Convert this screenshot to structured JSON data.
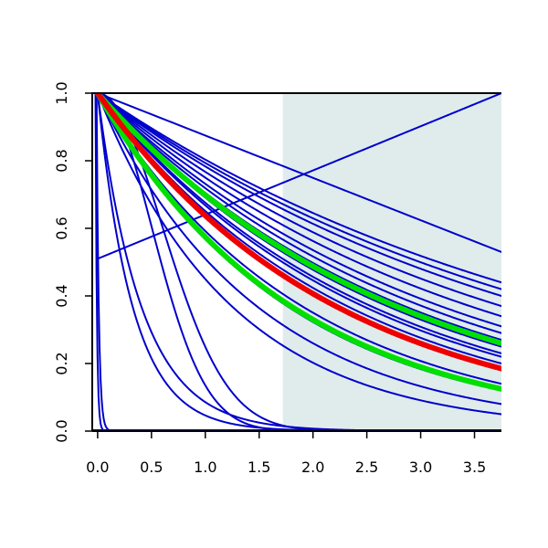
{
  "chart_data": {
    "type": "line",
    "title": "",
    "xlabel": "",
    "ylabel": "",
    "xlim": [
      -0.05,
      3.75
    ],
    "ylim": [
      0,
      1
    ],
    "grid": false,
    "x_ticks": [
      "0.0",
      "0.5",
      "1.0",
      "1.5",
      "2.0",
      "2.5",
      "3.0",
      "3.5"
    ],
    "y_ticks": [
      "0.0",
      "0.2",
      "0.4",
      "0.6",
      "0.8",
      "1.0"
    ],
    "shaded_region": {
      "x_start": 1.72,
      "x_end": 3.75,
      "color": "#e0ecec"
    },
    "colors": {
      "blue": "#0000cc",
      "green": "#00e000",
      "red": "#ee0000"
    },
    "series": [
      {
        "kind": "linear",
        "y0": 0.51,
        "y_end": 1.0,
        "color": "blue",
        "width": 2
      },
      {
        "kind": "linear",
        "y0": 1.0,
        "y_end": 0.53,
        "color": "blue",
        "width": 2
      },
      {
        "kind": "exp",
        "y_end": 0.44,
        "color": "blue",
        "width": 2
      },
      {
        "kind": "exp",
        "y_end": 0.42,
        "color": "blue",
        "width": 2
      },
      {
        "kind": "exp",
        "y_end": 0.4,
        "color": "blue",
        "width": 2
      },
      {
        "kind": "exp",
        "y_end": 0.37,
        "color": "blue",
        "width": 2
      },
      {
        "kind": "exp",
        "y_end": 0.34,
        "color": "blue",
        "width": 2
      },
      {
        "kind": "exp",
        "y_end": 0.31,
        "color": "blue",
        "width": 2
      },
      {
        "kind": "exp",
        "y_end": 0.29,
        "color": "blue",
        "width": 2
      },
      {
        "kind": "exp",
        "y_end": 0.27,
        "color": "blue",
        "width": 2
      },
      {
        "kind": "exp",
        "y_end": 0.25,
        "color": "blue",
        "width": 2
      },
      {
        "kind": "exp",
        "y_end": 0.23,
        "color": "blue",
        "width": 2
      },
      {
        "kind": "exp",
        "y_end": 0.22,
        "color": "blue",
        "width": 2
      },
      {
        "kind": "exp",
        "y_end": 0.2,
        "color": "blue",
        "width": 2
      },
      {
        "kind": "exp",
        "y_end": 0.14,
        "color": "blue",
        "width": 2
      },
      {
        "kind": "exp",
        "y_end": 0.12,
        "color": "blue",
        "width": 2
      },
      {
        "kind": "exp",
        "y_end": 0.08,
        "color": "blue",
        "width": 2
      },
      {
        "kind": "exp",
        "y_end": 0.05,
        "color": "blue",
        "width": 2
      },
      {
        "kind": "gauss",
        "sigma": 0.5,
        "color": "blue",
        "width": 2
      },
      {
        "kind": "gauss",
        "sigma": 0.6,
        "color": "blue",
        "width": 2
      },
      {
        "kind": "exp",
        "y_end": 0.0001,
        "color": "blue",
        "width": 2
      },
      {
        "kind": "exp",
        "y_end": 1e-05,
        "color": "blue",
        "width": 2
      },
      {
        "kind": "exp_shift",
        "x0": -0.02,
        "rate": 80,
        "color": "blue",
        "width": 2
      },
      {
        "kind": "exp_shift",
        "x0": -0.01,
        "rate": 50,
        "color": "blue",
        "width": 2
      },
      {
        "kind": "exp",
        "y_end": 0.26,
        "color": "green",
        "width": 6
      },
      {
        "kind": "exp",
        "y_end": 0.125,
        "color": "green",
        "width": 6
      },
      {
        "kind": "exp",
        "y_end": 0.185,
        "color": "red",
        "width": 6
      }
    ]
  }
}
